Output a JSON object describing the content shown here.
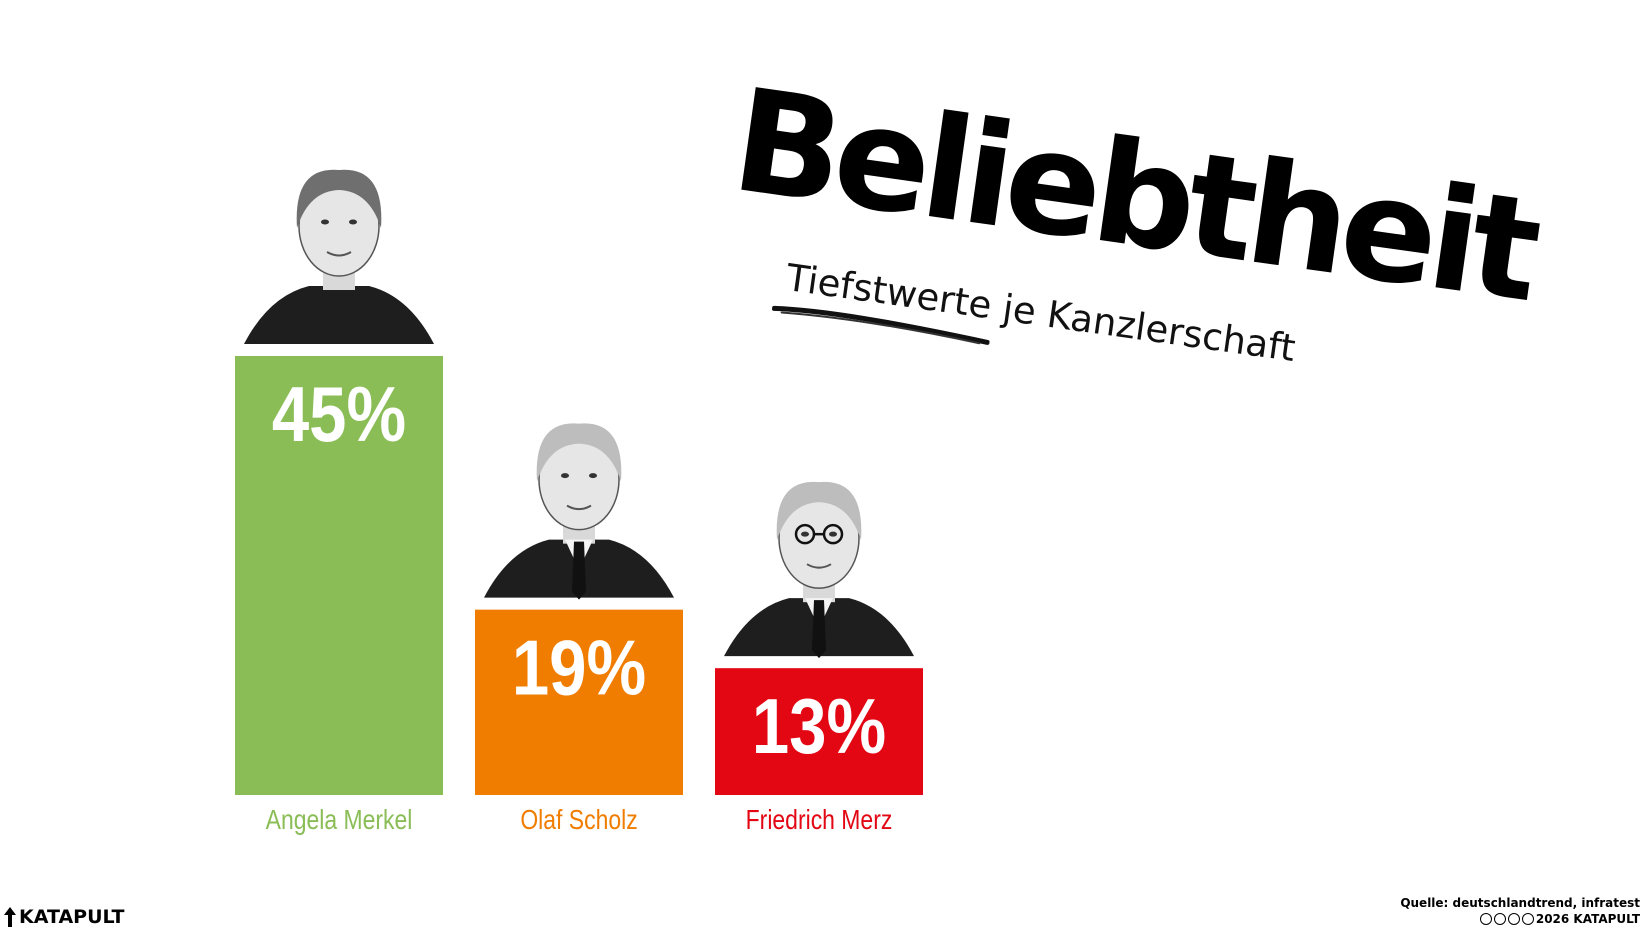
{
  "chart_data": {
    "type": "bar",
    "title": "Beliebtheit",
    "subtitle": "Tiefstwerte je Kanzlerschaft",
    "categories": [
      "Angela Merkel",
      "Olaf Scholz",
      "Friedrich Merz"
    ],
    "values": [
      45,
      19,
      13
    ],
    "value_labels": [
      "45%",
      "19%",
      "13%"
    ],
    "colors": [
      "#8abd56",
      "#f07d00",
      "#e30613"
    ],
    "ylim": [
      0,
      45
    ]
  },
  "footer": {
    "brand": "KATAPULT",
    "source": "Quelle: deutschlandtrend, infratest",
    "copyright": "2026 KATAPULT"
  }
}
